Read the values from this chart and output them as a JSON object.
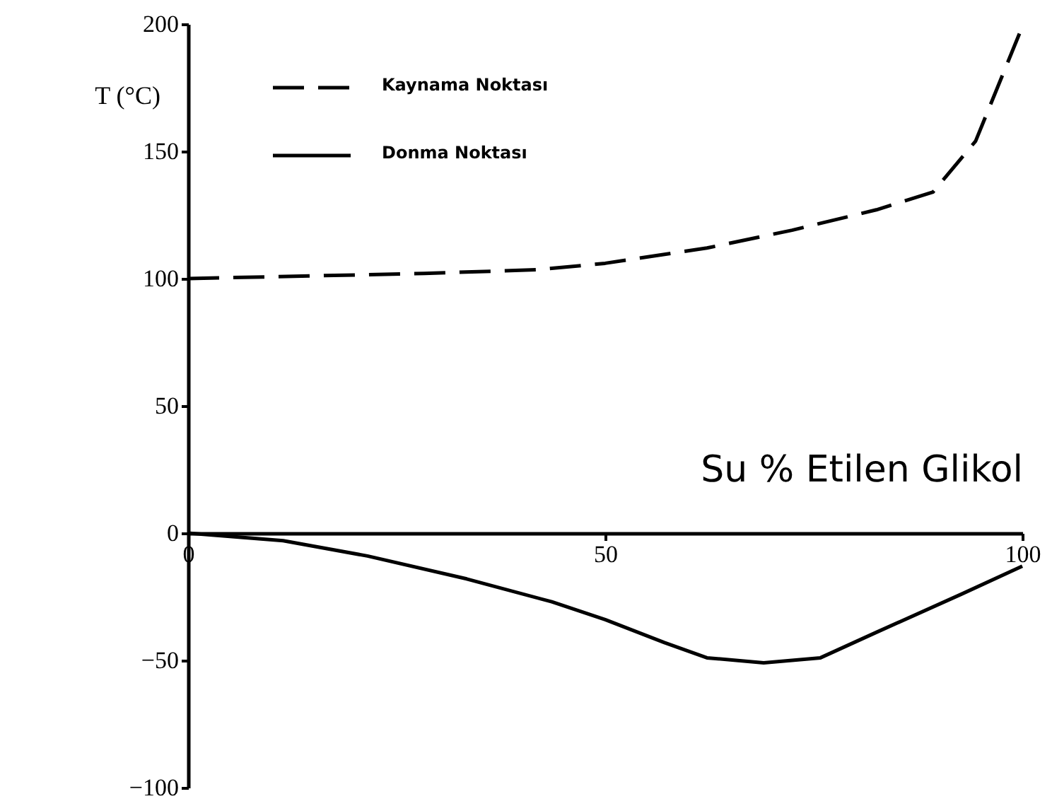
{
  "chart_data": {
    "type": "line",
    "xlabel": "Su  % Etilen Glikol",
    "ylabel": "T (°C)",
    "xlim": [
      0,
      100
    ],
    "xticks": [
      0,
      50,
      100
    ],
    "ylim": [
      -100,
      200
    ],
    "yticks": [
      -100,
      -50,
      0,
      50,
      100,
      150,
      200
    ],
    "grid": false,
    "legend": "top left",
    "marker": "none",
    "series": [
      {
        "name": "Kaynama Noktası",
        "color": "#000000",
        "line_style": "dashed",
        "x": [
          0,
          28.3,
          41.9,
          50,
          62.2,
          72.4,
          82.5,
          89.3,
          94.4,
          100
        ],
        "values": [
          100,
          102,
          103.5,
          106,
          112,
          119,
          127,
          134,
          154,
          199
        ]
      },
      {
        "name": "Donma Noktası",
        "color": "#000000",
        "line_style": "solid",
        "x": [
          0,
          11.4,
          21.5,
          33.4,
          43.6,
          50,
          57.1,
          62.2,
          69,
          75.8,
          82.5,
          92.7,
          100
        ],
        "values": [
          0,
          -3,
          -9,
          -18,
          -27,
          -34,
          -43,
          -49,
          -51,
          -49,
          -39,
          -24,
          -13
        ]
      }
    ]
  }
}
